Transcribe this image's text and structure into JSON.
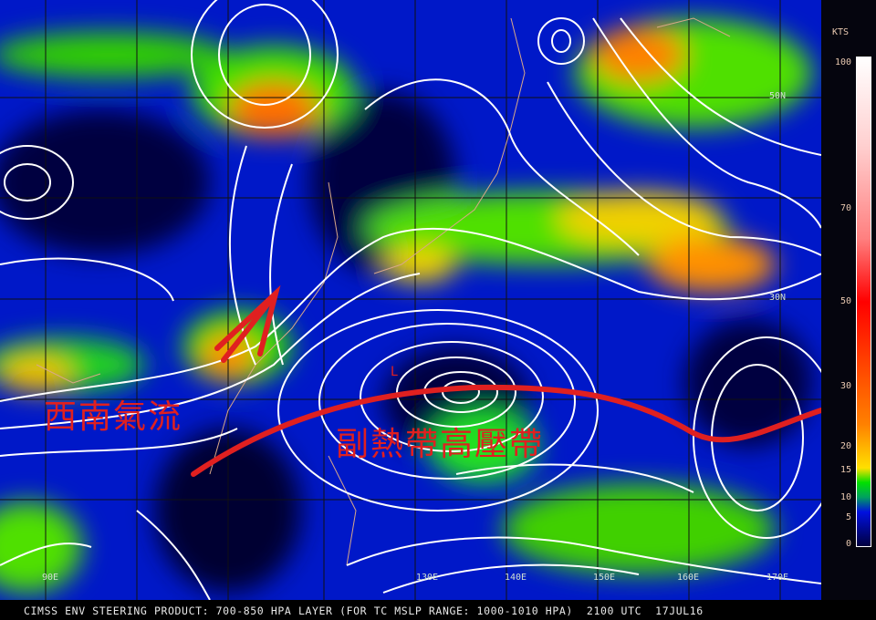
{
  "footer": {
    "caption": "CIMSS ENV STEERING PRODUCT: 700-850 HPA LAYER (FOR TC MSLP RANGE: 1000-1010 HPA)  2100 UTC  17JUL16"
  },
  "legend": {
    "unit": "KTS",
    "ticks": [
      "100",
      "70",
      "50",
      "30",
      "20",
      "15",
      "10",
      "5",
      "0"
    ],
    "colors": [
      "#ffffff",
      "#ff8080",
      "#ff0000",
      "#ff8000",
      "#ffe000",
      "#00e000",
      "#0010e0",
      "#000040"
    ]
  },
  "axes": {
    "longitudes": [
      "90E",
      "130E",
      "140E",
      "150E",
      "160E",
      "170E"
    ],
    "latitudes": [
      "50N",
      "30N"
    ]
  },
  "annotations": {
    "southwest_flow": "西南氣流",
    "subtropical_high": "副熱帶高壓帶",
    "low_marker": "L",
    "annotation_color": "#e02020"
  }
}
